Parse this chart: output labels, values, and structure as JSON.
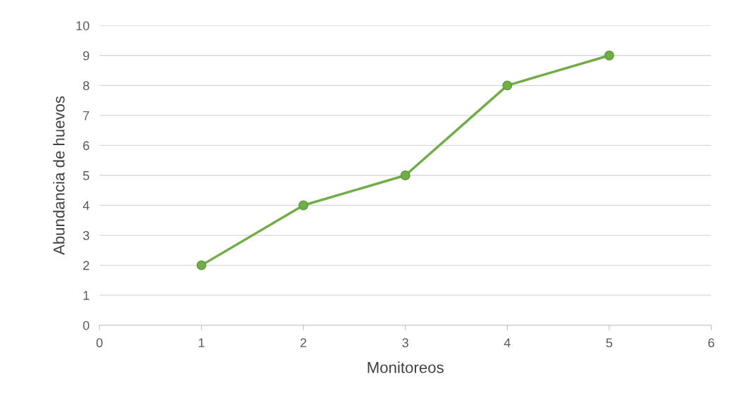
{
  "chart_data": {
    "type": "line",
    "xlabel": "Monitoreos",
    "ylabel": "Abundancia de huevos",
    "x": [
      1,
      2,
      3,
      4,
      5
    ],
    "series": [
      {
        "color": "#70ad47",
        "values": [
          2,
          4,
          5,
          8,
          9
        ]
      }
    ],
    "xlim": [
      0,
      6
    ],
    "xticks": [
      0,
      1,
      2,
      3,
      4,
      5,
      6
    ],
    "ylim": [
      0,
      10
    ],
    "yticks": [
      0,
      1,
      2,
      3,
      4,
      5,
      6,
      7,
      8,
      9,
      10
    ],
    "grid": "y",
    "marker": "circle",
    "line_style": "solid",
    "legend": false
  }
}
